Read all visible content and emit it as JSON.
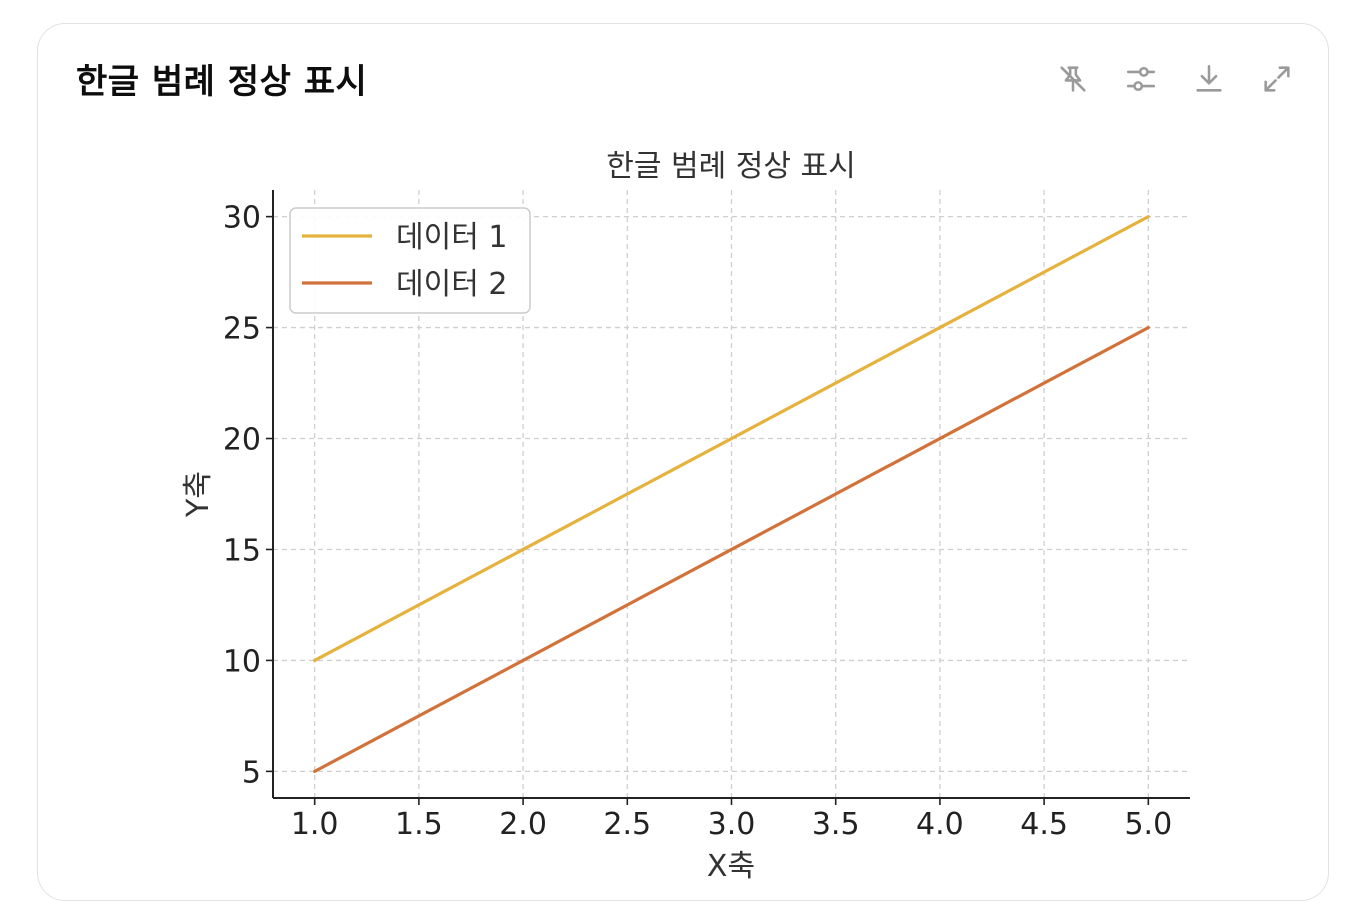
{
  "card": {
    "title": "한글 범례 정상 표시"
  },
  "toolbar": {
    "icons": [
      "pin-off-icon",
      "sliders-icon",
      "download-icon",
      "expand-icon"
    ]
  },
  "chart_data": {
    "type": "line",
    "title": "한글 범례 정상 표시",
    "xlabel": "X축",
    "ylabel": "Y축",
    "x": [
      1,
      2,
      3,
      4,
      5
    ],
    "series": [
      {
        "name": "데이터 1",
        "values": [
          10,
          15,
          20,
          25,
          30
        ],
        "color": "#e5b23e"
      },
      {
        "name": "데이터 2",
        "values": [
          5,
          10,
          15,
          20,
          25
        ],
        "color": "#d2723a"
      }
    ],
    "xlim": [
      0.8,
      5.2
    ],
    "ylim": [
      3.8,
      31.2
    ],
    "xticks": [
      1.0,
      1.5,
      2.0,
      2.5,
      3.0,
      3.5,
      4.0,
      4.5,
      5.0
    ],
    "xtick_labels": [
      "1.0",
      "1.5",
      "2.0",
      "2.5",
      "3.0",
      "3.5",
      "4.0",
      "4.5",
      "5.0"
    ],
    "yticks": [
      5,
      10,
      15,
      20,
      25,
      30
    ],
    "ytick_labels": [
      "5",
      "10",
      "15",
      "20",
      "25",
      "30"
    ],
    "grid": true,
    "legend_position": "upper-left"
  }
}
